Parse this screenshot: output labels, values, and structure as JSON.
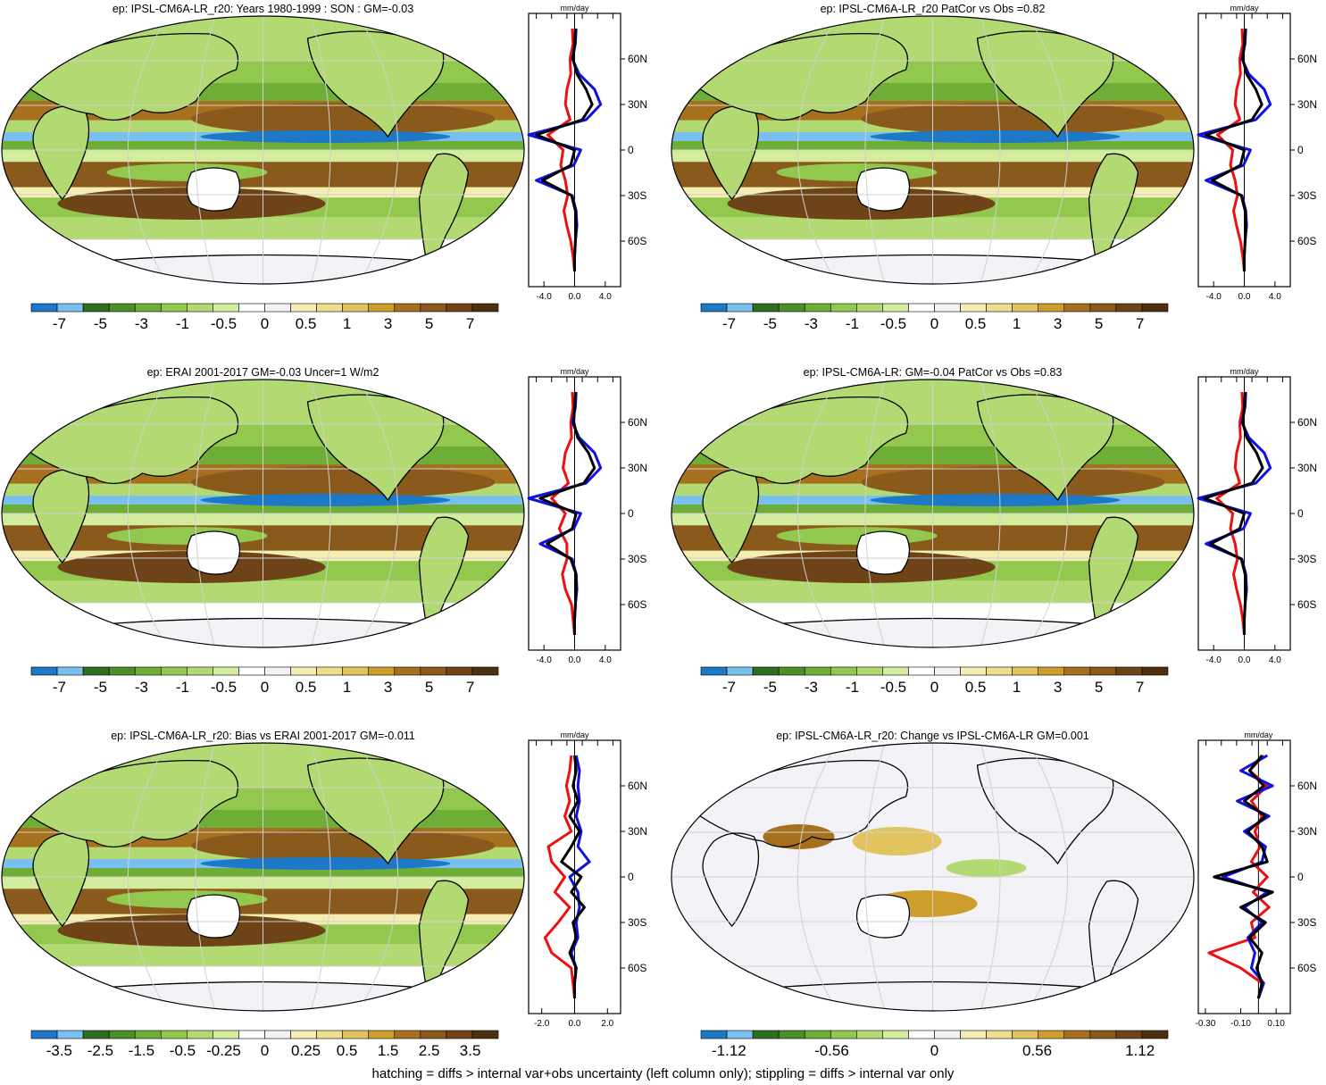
{
  "footer": "hatching = diffs > internal var+obs uncertainty (left column only); stippling = diffs > internal var only",
  "colors": {
    "palette": [
      "#1e78c8",
      "#7ac0ef",
      "#2e6e1e",
      "#4c8e28",
      "#6fae36",
      "#92c84e",
      "#b3da72",
      "#d3ec9e",
      "#ffffff",
      "#f3f3f7",
      "#f5eeb4",
      "#efde8e",
      "#e2c45e",
      "#cd9e2c",
      "#a6701f",
      "#8a5a1d",
      "#6e4317",
      "#4e3010"
    ],
    "land_outline": "#000000",
    "zonal_model": "#000000",
    "zonal_obs": "#1010e0",
    "zonal_diff": "#ee1010"
  },
  "lat_labels": [
    "60N",
    "30N",
    "0",
    "30S",
    "60S"
  ],
  "zonal_unit": "mm/day",
  "chart_data": [
    {
      "type": "heatmap",
      "title": "ep: IPSL-CM6A-LR_r20: Years 1980-1999 : SON : GM=-0.03",
      "colorbar_labels": [
        "-7",
        "-5",
        "-3",
        "-1",
        "-0.5",
        "0",
        "0.5",
        "1",
        "3",
        "5",
        "7"
      ],
      "zonal": {
        "xticks": [
          "-4.0",
          "0.0",
          "4.0"
        ],
        "xlim": [
          -6,
          6
        ],
        "lat": [
          80,
          70,
          60,
          50,
          40,
          30,
          20,
          10,
          0,
          -10,
          -20,
          -30,
          -40,
          -50,
          -60,
          -70,
          -80
        ],
        "model": [
          0.1,
          0,
          -0.2,
          0.3,
          1.5,
          2.3,
          1.0,
          -5.0,
          0,
          -0.5,
          -4.2,
          -0.4,
          0.1,
          0.2,
          0.1,
          0,
          0
        ],
        "obs": [
          0.2,
          0.1,
          -0.3,
          0.6,
          2.6,
          3.4,
          1.5,
          -6.0,
          0.8,
          -0.1,
          -5.0,
          -0.3,
          0.2,
          0.3,
          0.1,
          0,
          0
        ],
        "diff": [
          -0.3,
          -0.2,
          -0.6,
          -0.5,
          -1.0,
          -1.2,
          -0.6,
          -3.5,
          -1.5,
          -1.8,
          -1.2,
          -0.9,
          -1.4,
          -1.0,
          -0.5,
          -0.2,
          0
        ]
      }
    },
    {
      "type": "heatmap",
      "title": "ep: IPSL-CM6A-LR_r20 PatCor vs Obs =0.82",
      "colorbar_labels": [
        "-7",
        "-5",
        "-3",
        "-1",
        "-0.5",
        "0",
        "0.5",
        "1",
        "3",
        "5",
        "7"
      ],
      "zonal": {
        "xticks": [
          "-4.0",
          "0.0",
          "4.0"
        ],
        "xlim": [
          -6,
          6
        ],
        "lat": [
          80,
          70,
          60,
          50,
          40,
          30,
          20,
          10,
          0,
          -10,
          -20,
          -30,
          -40,
          -50,
          -60,
          -70,
          -80
        ],
        "model": [
          0.1,
          0,
          -0.2,
          0.3,
          1.5,
          2.3,
          1.0,
          -5.0,
          0,
          -0.5,
          -4.2,
          -0.4,
          0.1,
          0.2,
          0.1,
          0,
          0
        ],
        "obs": [
          0.2,
          0.1,
          -0.3,
          0.6,
          2.6,
          3.4,
          1.5,
          -6.0,
          0.8,
          -0.1,
          -5.0,
          -0.3,
          0.2,
          0.3,
          0.1,
          0,
          0
        ],
        "diff": [
          -0.3,
          -0.2,
          -0.6,
          -0.5,
          -1.0,
          -1.2,
          -0.6,
          -3.5,
          -1.5,
          -1.8,
          -1.2,
          -0.9,
          -1.4,
          -1.0,
          -0.5,
          -0.2,
          0
        ]
      }
    },
    {
      "type": "heatmap",
      "title": "ep: ERAI 2001-2017 GM=-0.03 Uncer=1 W/m2",
      "colorbar_labels": [
        "-7",
        "-5",
        "-3",
        "-1",
        "-0.5",
        "0",
        "0.5",
        "1",
        "3",
        "5",
        "7"
      ],
      "zonal": {
        "xticks": [
          "-4.0",
          "0.0",
          "4.0"
        ],
        "xlim": [
          -6,
          6
        ],
        "lat": [
          80,
          70,
          60,
          50,
          40,
          30,
          20,
          10,
          0,
          -10,
          -20,
          -30,
          -40,
          -50,
          -60,
          -70,
          -80
        ],
        "model": [
          0.1,
          0,
          -0.1,
          0.4,
          1.8,
          2.6,
          1.2,
          -4.5,
          0.2,
          -0.3,
          -3.6,
          -0.5,
          0.2,
          0.2,
          0.1,
          0,
          0
        ],
        "obs": [
          0.2,
          0.1,
          -0.3,
          0.6,
          2.6,
          3.4,
          1.5,
          -6.0,
          0.8,
          -0.1,
          -4.5,
          -0.3,
          0.2,
          0.3,
          0.1,
          0,
          0
        ],
        "diff": [
          -0.3,
          -0.2,
          -0.5,
          -0.4,
          -1.2,
          -1.5,
          -0.8,
          -3.0,
          -1.2,
          -2.0,
          -1.0,
          -1.0,
          -1.6,
          -1.2,
          -0.4,
          -0.2,
          0
        ]
      }
    },
    {
      "type": "heatmap",
      "title": "ep: IPSL-CM6A-LR: GM=-0.04 PatCor vs Obs =0.83",
      "colorbar_labels": [
        "-7",
        "-5",
        "-3",
        "-1",
        "-0.5",
        "0",
        "0.5",
        "1",
        "3",
        "5",
        "7"
      ],
      "zonal": {
        "xticks": [
          "-4.0",
          "0.0",
          "4.0"
        ],
        "xlim": [
          -6,
          6
        ],
        "lat": [
          80,
          70,
          60,
          50,
          40,
          30,
          20,
          10,
          0,
          -10,
          -20,
          -30,
          -40,
          -50,
          -60,
          -70,
          -80
        ],
        "model": [
          0.1,
          0,
          -0.2,
          0.3,
          1.6,
          2.4,
          1.0,
          -5.2,
          0,
          -0.6,
          -4.4,
          -0.4,
          0.1,
          0.2,
          0.1,
          0,
          0
        ],
        "obs": [
          0.2,
          0.1,
          -0.3,
          0.6,
          2.6,
          3.4,
          1.5,
          -6.0,
          0.8,
          -0.1,
          -5.0,
          -0.3,
          0.2,
          0.3,
          0.1,
          0,
          0
        ],
        "diff": [
          -0.3,
          -0.2,
          -0.6,
          -0.5,
          -1.0,
          -1.2,
          -0.6,
          -3.6,
          -1.5,
          -1.8,
          -1.2,
          -0.9,
          -1.4,
          -1.0,
          -0.5,
          -0.2,
          0
        ]
      }
    },
    {
      "type": "heatmap",
      "title": "ep: IPSL-CM6A-LR_r20: Bias vs ERAI 2001-2017  GM=-0.011",
      "colorbar_labels": [
        "-3.5",
        "-2.5",
        "-1.5",
        "-0.5",
        "-0.25",
        "0",
        "0.25",
        "0.5",
        "1.5",
        "2.5",
        "3.5"
      ],
      "zonal": {
        "xticks": [
          "-2.0",
          "0.0",
          "2.0"
        ],
        "xlim": [
          -2.8,
          2.8
        ],
        "lat": [
          80,
          70,
          60,
          50,
          40,
          30,
          20,
          10,
          0,
          -10,
          -20,
          -30,
          -40,
          -50,
          -60,
          -70,
          -80
        ],
        "model": [
          0,
          0.1,
          -0.1,
          0.2,
          -0.3,
          0.3,
          -0.2,
          -0.8,
          0.4,
          -0.2,
          0.6,
          -0.1,
          0.1,
          -0.3,
          0.1,
          0,
          0
        ],
        "obs": [
          0.1,
          0.3,
          0.2,
          0.3,
          0.1,
          0.4,
          0.2,
          0.9,
          -0.3,
          0.2,
          0.3,
          0.1,
          0.2,
          -0.2,
          0.1,
          0,
          0
        ],
        "diff": [
          -0.2,
          -0.3,
          -0.5,
          -0.3,
          -0.6,
          -0.2,
          -1.6,
          -1.4,
          -0.6,
          -1.2,
          -0.3,
          -1.0,
          -1.8,
          -1.4,
          -0.2,
          -0.1,
          0
        ]
      }
    },
    {
      "type": "heatmap",
      "title": "ep: IPSL-CM6A-LR_r20: Change vs IPSL-CM6A-LR GM=0.001",
      "colorbar_labels": [
        "-1.12",
        "-0.56",
        "0",
        "0.56",
        "1.12"
      ],
      "zonal": {
        "xticks": [
          "-0.30",
          "-0.10",
          "0.10"
        ],
        "xlim": [
          -0.34,
          0.18
        ],
        "lat": [
          80,
          70,
          60,
          50,
          40,
          30,
          20,
          10,
          0,
          -10,
          -20,
          -30,
          -40,
          -50,
          -60,
          -70,
          -80
        ],
        "model": [
          0.02,
          -0.05,
          0.03,
          -0.08,
          0.04,
          -0.06,
          0.02,
          0.05,
          -0.25,
          0.08,
          -0.1,
          0.04,
          -0.05,
          0.02,
          -0.01,
          0.02,
          0
        ],
        "obs": [
          0.05,
          -0.1,
          0.08,
          -0.12,
          0.06,
          -0.08,
          0.04,
          0.02,
          -0.2,
          0.05,
          -0.08,
          0.02,
          -0.06,
          -0.02,
          -0.04,
          0.03,
          0
        ],
        "diff": [
          0.03,
          -0.05,
          0.05,
          -0.04,
          0.02,
          -0.02,
          0.01,
          -0.04,
          0.05,
          -0.03,
          0.06,
          -0.04,
          -0.02,
          -0.28,
          -0.1,
          0.02,
          0
        ]
      }
    }
  ]
}
